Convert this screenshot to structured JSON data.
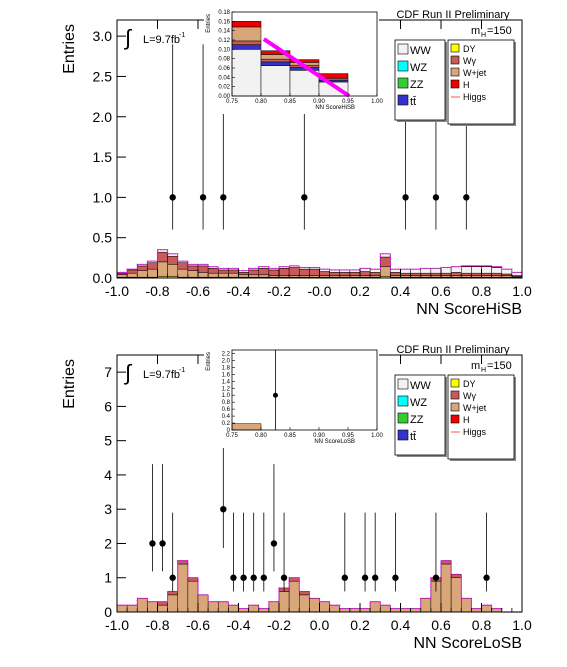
{
  "chart_data": [
    {
      "id": "top",
      "type": "bar",
      "title": "CDF Run II Preliminary",
      "xlabel": "NN ScoreHiSB",
      "ylabel": "Entries",
      "lumi_text": "L=9.7fb",
      "lumi_sup": "-1",
      "mass_label": "m",
      "mass_sub": "H",
      "mass_value": "=150",
      "xlim": [
        -1.0,
        1.0
      ],
      "ylim": [
        0,
        3.2
      ],
      "xticks": [
        "-1.0",
        "-0.8",
        "-0.6",
        "-0.4",
        "-0.2",
        "-0.0",
        "0.2",
        "0.4",
        "0.6",
        "0.8",
        "1.0"
      ],
      "yticks": [
        "0.0",
        "0.5",
        "1.0",
        "1.5",
        "2.0",
        "2.5",
        "3.0"
      ],
      "grid": false,
      "legend_placement": "top-right",
      "legend_left": [
        {
          "label": "WW",
          "color": "#f2f2f2"
        },
        {
          "label": "WZ",
          "color": "#00ffff"
        },
        {
          "label": "ZZ",
          "color": "#33cc33"
        },
        {
          "label": "tt̄",
          "color": "#3333cc"
        }
      ],
      "legend_right": [
        {
          "label": "DY",
          "color": "#ffff00"
        },
        {
          "label": "Wγ",
          "color": "#c85a5a"
        },
        {
          "label": "W+jet",
          "color": "#d9a679"
        },
        {
          "label": "H",
          "color": "#ee0000"
        },
        {
          "label": "Higgs",
          "color": "#ff5555",
          "style": "line"
        }
      ],
      "bins": 40,
      "series": [
        {
          "name": "DY",
          "color": "#ffff00",
          "values": [
            0.01,
            0.01,
            0.01,
            0.01,
            0.02,
            0.02,
            0.01,
            0.01,
            0.01,
            0.01,
            0.01,
            0.01,
            0.01,
            0.01,
            0.01,
            0.01,
            0.01,
            0.01,
            0.01,
            0.01,
            0.01,
            0.01,
            0.01,
            0.01,
            0.01,
            0.01,
            0.02,
            0.01,
            0.01,
            0.01,
            0.01,
            0.01,
            0.01,
            0.01,
            0.01,
            0.01,
            0.01,
            0.01,
            0.01,
            0.01
          ]
        },
        {
          "name": "W+jet",
          "color": "#d9a679",
          "values": [
            0.03,
            0.05,
            0.08,
            0.1,
            0.18,
            0.15,
            0.1,
            0.08,
            0.06,
            0.05,
            0.05,
            0.05,
            0.03,
            0.03,
            0.03,
            0.02,
            0.02,
            0.02,
            0.02,
            0.02,
            0.02,
            0.02,
            0.02,
            0.02,
            0.02,
            0.02,
            0.12,
            0.02,
            0.02,
            0.02,
            0.02,
            0.02,
            0.02,
            0.02,
            0.02,
            0.02,
            0.02,
            0.02,
            0.02,
            0.01
          ]
        },
        {
          "name": "Wγ",
          "color": "#c85a5a",
          "values": [
            0.02,
            0.04,
            0.06,
            0.08,
            0.12,
            0.1,
            0.08,
            0.06,
            0.08,
            0.06,
            0.04,
            0.04,
            0.03,
            0.06,
            0.08,
            0.07,
            0.09,
            0.1,
            0.08,
            0.08,
            0.05,
            0.04,
            0.04,
            0.04,
            0.05,
            0.04,
            0.12,
            0.04,
            0.03,
            0.03,
            0.03,
            0.03,
            0.03,
            0.04,
            0.03,
            0.03,
            0.03,
            0.03,
            0.02,
            0.01
          ]
        },
        {
          "name": "WW",
          "color": "#f2f2f2",
          "values": [
            0.01,
            0.01,
            0.02,
            0.02,
            0.03,
            0.03,
            0.02,
            0.02,
            0.02,
            0.02,
            0.02,
            0.02,
            0.02,
            0.02,
            0.02,
            0.02,
            0.02,
            0.02,
            0.02,
            0.02,
            0.03,
            0.03,
            0.03,
            0.03,
            0.04,
            0.04,
            0.04,
            0.04,
            0.05,
            0.05,
            0.06,
            0.06,
            0.07,
            0.07,
            0.08,
            0.08,
            0.08,
            0.07,
            0.06,
            0.04
          ]
        },
        {
          "name": "H",
          "color": "#ee0000",
          "values": [
            0.0,
            0.0,
            0.0,
            0.0,
            0.0,
            0.0,
            0.0,
            0.0,
            0.0,
            0.0,
            0.0,
            0.0,
            0.0,
            0.0,
            0.0,
            0.0,
            0.0,
            0.0,
            0.0,
            0.0,
            0.0,
            0.0,
            0.0,
            0.0,
            0.0,
            0.0,
            0.0,
            0.0,
            0.0,
            0.0,
            0.0,
            0.0,
            0.0,
            0.0,
            0.01,
            0.01,
            0.01,
            0.01,
            0.0,
            0.0
          ]
        }
      ],
      "data_points": [
        {
          "x": -0.725,
          "y": 1
        },
        {
          "x": -0.575,
          "y": 1
        },
        {
          "x": -0.475,
          "y": 1
        },
        {
          "x": -0.075,
          "y": 1
        },
        {
          "x": 0.425,
          "y": 1
        },
        {
          "x": 0.575,
          "y": 1
        },
        {
          "x": 0.725,
          "y": 1
        }
      ],
      "inset": {
        "xlabel": "NN ScoreHiSB",
        "ylabel": "Entries",
        "xlim": [
          0.75,
          1.0
        ],
        "ylim": [
          0,
          0.18
        ],
        "xticks": [
          "0.75",
          "0.80",
          "0.85",
          "0.90",
          "0.95",
          "1.00"
        ],
        "yticks": [
          "0.00",
          "0.02",
          "0.04",
          "0.06",
          "0.08",
          "0.10",
          "0.12",
          "0.14",
          "0.16",
          "0.18"
        ],
        "bin_edges": [
          0.75,
          0.8,
          0.85,
          0.9,
          0.95,
          1.0
        ],
        "stack": [
          {
            "name": "WW",
            "color": "#f2f2f2",
            "values": [
              0.1,
              0.065,
              0.055,
              0.03,
              0.0
            ]
          },
          {
            "name": "tt̄",
            "color": "#3333cc",
            "values": [
              0.01,
              0.008,
              0.006,
              0.004,
              0.0
            ]
          },
          {
            "name": "Wγ",
            "color": "#c85a5a",
            "values": [
              0.008,
              0.006,
              0.005,
              0.004,
              0.0
            ]
          },
          {
            "name": "W+jet",
            "color": "#d9a679",
            "values": [
              0.03,
              0.01,
              0.006,
              0.002,
              0.0
            ]
          },
          {
            "name": "H",
            "color": "#ee0000",
            "values": [
              0.012,
              0.008,
              0.006,
              0.008,
              0.0
            ]
          }
        ],
        "higgs_points": [
          {
            "x": 0.805,
            "y": 0.122
          },
          {
            "x": 0.952,
            "y": 0.0
          }
        ]
      }
    },
    {
      "id": "bottom",
      "type": "bar",
      "title": "CDF Run II Preliminary",
      "xlabel": "NN ScoreLoSB",
      "ylabel": "Entries",
      "lumi_text": "L=9.7fb",
      "lumi_sup": "-1",
      "mass_label": "m",
      "mass_sub": "H",
      "mass_value": "=150",
      "xlim": [
        -1.0,
        1.0
      ],
      "ylim": [
        0,
        7.5
      ],
      "xticks": [
        "-1.0",
        "-0.8",
        "-0.6",
        "-0.4",
        "-0.2",
        "0.0",
        "0.2",
        "0.4",
        "0.6",
        "0.8",
        "1.0"
      ],
      "yticks": [
        "0",
        "1",
        "2",
        "3",
        "4",
        "5",
        "6",
        "7"
      ],
      "grid": false,
      "legend_placement": "top-right",
      "legend_left": [
        {
          "label": "WW",
          "color": "#f2f2f2"
        },
        {
          "label": "WZ",
          "color": "#00ffff"
        },
        {
          "label": "ZZ",
          "color": "#33cc33"
        },
        {
          "label": "tt̄",
          "color": "#3333cc"
        }
      ],
      "legend_right": [
        {
          "label": "DY",
          "color": "#ffff00"
        },
        {
          "label": "Wγ",
          "color": "#c85a5a"
        },
        {
          "label": "W+jet",
          "color": "#d9a679"
        },
        {
          "label": "H",
          "color": "#ee0000"
        },
        {
          "label": "Higgs",
          "color": "#ff5555",
          "style": "line"
        }
      ],
      "bins": 40,
      "series": [
        {
          "name": "W+jet",
          "color": "#d9a679",
          "values": [
            0.2,
            0.2,
            0.4,
            0.3,
            0.2,
            0.5,
            1.4,
            0.9,
            0.5,
            0.3,
            0.3,
            0.2,
            0.1,
            0.2,
            0.1,
            0.3,
            0.6,
            0.9,
            0.5,
            0.4,
            0.3,
            0.2,
            0.1,
            0.1,
            0.1,
            0.3,
            0.2,
            0.1,
            0.1,
            0.1,
            0.4,
            0.9,
            1.4,
            1.0,
            0.4,
            0.1,
            0.2,
            0.1,
            0.0,
            0.0
          ]
        },
        {
          "name": "Wγ",
          "color": "#c85a5a",
          "values": [
            0.0,
            0.0,
            0.0,
            0.0,
            0.1,
            0.1,
            0.1,
            0.1,
            0.0,
            0.0,
            0.0,
            0.0,
            0.0,
            0.0,
            0.0,
            0.0,
            0.1,
            0.1,
            0.1,
            0.0,
            0.0,
            0.0,
            0.0,
            0.0,
            0.0,
            0.0,
            0.0,
            0.0,
            0.0,
            0.0,
            0.0,
            0.1,
            0.1,
            0.1,
            0.0,
            0.0,
            0.0,
            0.0,
            0.0,
            0.0
          ]
        }
      ],
      "data_points": [
        {
          "x": -0.825,
          "y": 2
        },
        {
          "x": -0.775,
          "y": 2
        },
        {
          "x": -0.725,
          "y": 1
        },
        {
          "x": -0.475,
          "y": 3
        },
        {
          "x": -0.425,
          "y": 1
        },
        {
          "x": -0.375,
          "y": 1
        },
        {
          "x": -0.325,
          "y": 1
        },
        {
          "x": -0.275,
          "y": 1
        },
        {
          "x": -0.225,
          "y": 2
        },
        {
          "x": -0.175,
          "y": 1
        },
        {
          "x": 0.125,
          "y": 1
        },
        {
          "x": 0.225,
          "y": 1
        },
        {
          "x": 0.275,
          "y": 1
        },
        {
          "x": 0.375,
          "y": 1
        },
        {
          "x": 0.575,
          "y": 1
        },
        {
          "x": 0.825,
          "y": 1
        }
      ],
      "inset": {
        "xlabel": "NN ScoreLoSB",
        "ylabel": "Entries",
        "xlim": [
          0.75,
          1.0
        ],
        "ylim": [
          0,
          2.3
        ],
        "xticks": [
          "0.75",
          "0.80",
          "0.85",
          "0.90",
          "0.95",
          "1.00"
        ],
        "yticks": [
          "0",
          "0.2",
          "0.4",
          "0.6",
          "0.8",
          "1.0",
          "1.2",
          "1.4",
          "1.6",
          "1.8",
          "2.0",
          "2.2"
        ],
        "bin_edges": [
          0.75,
          0.8,
          0.85,
          0.9,
          0.95,
          1.0
        ],
        "stack": [
          {
            "name": "W+jet",
            "color": "#d9a679",
            "values": [
              0.18,
              0.0,
              0.0,
              0.0,
              0.0
            ]
          }
        ],
        "data_points": [
          {
            "x": 0.825,
            "y": 1
          }
        ]
      }
    }
  ]
}
